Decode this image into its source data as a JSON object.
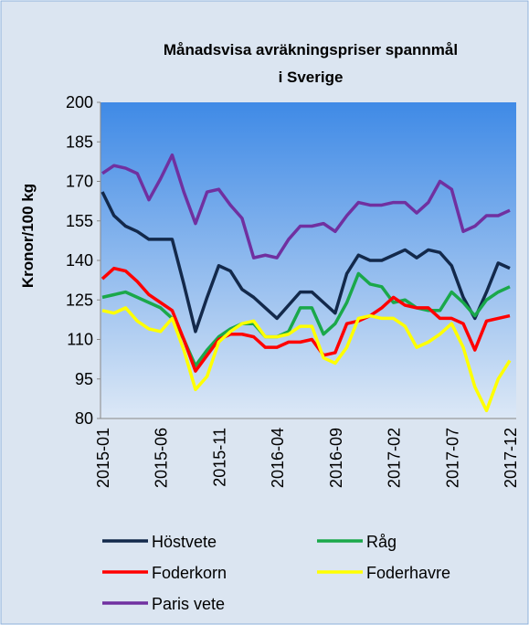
{
  "chart_data": {
    "type": "line",
    "title_lines": [
      "Månadsvisa avräkningspriser spannmål",
      "i Sverige"
    ],
    "y_label": "Kronor/100 kg",
    "categories": [
      "2015-01",
      null,
      null,
      null,
      null,
      "2015-06",
      null,
      null,
      null,
      null,
      "2015-11",
      null,
      null,
      null,
      null,
      "2016-04",
      null,
      null,
      null,
      null,
      "2016-09",
      null,
      null,
      null,
      null,
      "2017-02",
      null,
      null,
      null,
      null,
      "2017-07",
      null,
      null,
      null,
      null,
      "2017-12"
    ],
    "ylim": [
      80,
      200
    ],
    "yticks": [
      80,
      95,
      110,
      125,
      140,
      155,
      170,
      185,
      200
    ],
    "series": [
      {
        "name": "Höstvete",
        "color": "#13294b",
        "values": [
          166,
          157,
          153,
          151,
          148,
          148,
          148,
          131,
          113,
          126,
          138,
          136,
          129,
          126,
          122,
          118,
          123,
          128,
          128,
          124,
          120,
          135,
          142,
          140,
          140,
          142,
          144,
          141,
          144,
          143,
          138,
          126,
          118,
          128,
          139,
          137
        ]
      },
      {
        "name": "Råg",
        "color": "#1aa84a",
        "values": [
          126,
          127,
          128,
          126,
          124,
          122,
          118,
          110,
          100,
          106,
          111,
          114,
          116,
          116,
          111,
          111,
          113,
          122,
          122,
          112,
          116,
          124,
          135,
          131,
          130,
          124,
          125,
          122,
          121,
          121,
          128,
          124,
          119,
          125,
          128,
          130
        ]
      },
      {
        "name": "Foderkorn",
        "color": "#ff0000",
        "values": [
          133,
          137,
          136,
          132,
          127,
          124,
          121,
          110,
          98,
          104,
          110,
          112,
          112,
          111,
          107,
          107,
          109,
          109,
          110,
          104,
          105,
          116,
          117,
          119,
          122,
          126,
          123,
          122,
          122,
          118,
          118,
          116,
          106,
          117,
          118,
          119
        ]
      },
      {
        "name": "Foderhavre",
        "color": "#ffff00",
        "values": [
          121,
          120,
          122,
          117,
          114,
          113,
          118,
          106,
          91,
          96,
          109,
          113,
          116,
          117,
          111,
          111,
          112,
          115,
          115,
          103,
          101,
          107,
          118,
          119,
          118,
          118,
          115,
          107,
          109,
          112,
          116,
          107,
          92,
          83,
          95,
          102
        ]
      },
      {
        "name": "Paris vete",
        "color": "#7030a0",
        "values": [
          173,
          176,
          175,
          173,
          163,
          171,
          180,
          166,
          154,
          166,
          167,
          161,
          156,
          141,
          142,
          141,
          148,
          153,
          153,
          154,
          151,
          157,
          162,
          161,
          161,
          162,
          162,
          158,
          162,
          170,
          167,
          151,
          153,
          157,
          157,
          159
        ]
      }
    ]
  }
}
